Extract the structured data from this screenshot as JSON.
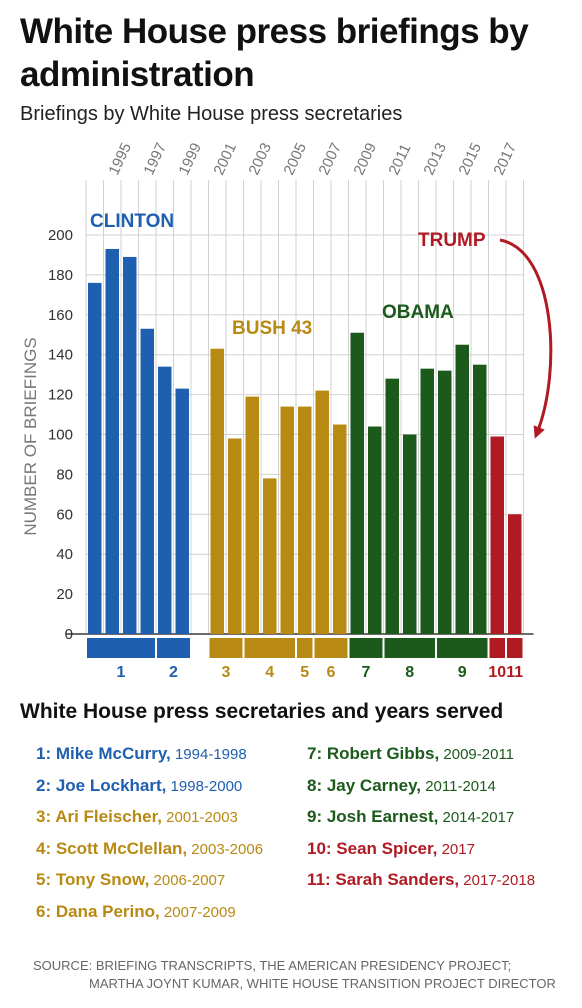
{
  "title": "White House press briefings by administration",
  "subtitle": "Briefings by White House press secretaries",
  "colors": {
    "clinton": "#1f5fb0",
    "bush": "#b88a14",
    "obama": "#1c5a1c",
    "trump": "#b01a22",
    "grid": "#d2d2d2",
    "axis": "#6b6b6b"
  },
  "chart_data": {
    "type": "bar",
    "ylabel": "NUMBER OF BRIEFINGS",
    "ylim": [
      0,
      200
    ],
    "yticks": [
      0,
      20,
      40,
      60,
      80,
      100,
      120,
      140,
      160,
      180,
      200
    ],
    "xticks_top": [
      "1995",
      "1997",
      "1999",
      "2001",
      "2003",
      "2005",
      "2007",
      "2009",
      "2011",
      "2013",
      "2015",
      "2017"
    ],
    "grid": true,
    "bars": [
      {
        "year": 1994,
        "value": 176,
        "admin": "clinton"
      },
      {
        "year": 1995,
        "value": 193,
        "admin": "clinton"
      },
      {
        "year": 1996,
        "value": 189,
        "admin": "clinton"
      },
      {
        "year": 1997,
        "value": 153,
        "admin": "clinton"
      },
      {
        "year": 1998,
        "value": 134,
        "admin": "clinton"
      },
      {
        "year": 1999,
        "value": 123,
        "admin": "clinton"
      },
      {
        "year": 2001,
        "value": 143,
        "admin": "bush"
      },
      {
        "year": 2002,
        "value": 98,
        "admin": "bush"
      },
      {
        "year": 2003,
        "value": 119,
        "admin": "bush"
      },
      {
        "year": 2004,
        "value": 78,
        "admin": "bush"
      },
      {
        "year": 2005,
        "value": 114,
        "admin": "bush"
      },
      {
        "year": 2006,
        "value": 114,
        "admin": "bush"
      },
      {
        "year": 2007,
        "value": 122,
        "admin": "bush"
      },
      {
        "year": 2008,
        "value": 105,
        "admin": "bush"
      },
      {
        "year": 2009,
        "value": 151,
        "admin": "obama"
      },
      {
        "year": 2010,
        "value": 104,
        "admin": "obama"
      },
      {
        "year": 2011,
        "value": 128,
        "admin": "obama"
      },
      {
        "year": 2012,
        "value": 100,
        "admin": "obama"
      },
      {
        "year": 2013,
        "value": 133,
        "admin": "obama"
      },
      {
        "year": 2014,
        "value": 132,
        "admin": "obama"
      },
      {
        "year": 2015,
        "value": 145,
        "admin": "obama"
      },
      {
        "year": 2016,
        "value": 135,
        "admin": "obama"
      },
      {
        "year": 2017,
        "value": 99,
        "admin": "trump"
      },
      {
        "year": 2018,
        "value": 60,
        "admin": "trump"
      }
    ],
    "admin_labels": [
      {
        "text": "CLINTON",
        "admin": "clinton"
      },
      {
        "text": "BUSH 43",
        "admin": "bush"
      },
      {
        "text": "OBAMA",
        "admin": "obama"
      },
      {
        "text": "TRUMP",
        "admin": "trump"
      }
    ],
    "secretary_tenures": [
      {
        "label": "1",
        "start": 1994.0,
        "end": 1998.0,
        "admin": "clinton"
      },
      {
        "label": "2",
        "start": 1998.0,
        "end": 2000.0,
        "admin": "clinton"
      },
      {
        "label": "3",
        "start": 2001.0,
        "end": 2003.0,
        "admin": "bush"
      },
      {
        "label": "4",
        "start": 2003.0,
        "end": 2006.0,
        "admin": "bush"
      },
      {
        "label": "5",
        "start": 2006.0,
        "end": 2007.0,
        "admin": "bush"
      },
      {
        "label": "6",
        "start": 2007.0,
        "end": 2009.0,
        "admin": "bush"
      },
      {
        "label": "7",
        "start": 2009.0,
        "end": 2011.0,
        "admin": "obama"
      },
      {
        "label": "8",
        "start": 2011.0,
        "end": 2014.0,
        "admin": "obama"
      },
      {
        "label": "9",
        "start": 2014.0,
        "end": 2017.0,
        "admin": "obama"
      },
      {
        "label": "10",
        "start": 2017.0,
        "end": 2018.0,
        "admin": "trump"
      },
      {
        "label": "11",
        "start": 2018.0,
        "end": 2019.0,
        "admin": "trump"
      }
    ]
  },
  "legend": {
    "title": "White House press secretaries and years served",
    "left": [
      {
        "name": "1: Mike McCurry,",
        "years": " 1994-1998",
        "admin": "clinton"
      },
      {
        "name": "2: Joe Lockhart,",
        "years": " 1998-2000",
        "admin": "clinton"
      },
      {
        "name": "3: Ari Fleischer,",
        "years": " 2001-2003",
        "admin": "bush"
      },
      {
        "name": "4: Scott McClellan,",
        "years": " 2003-2006",
        "admin": "bush"
      },
      {
        "name": "5: Tony Snow,",
        "years": " 2006-2007",
        "admin": "bush"
      },
      {
        "name": "6: Dana Perino,",
        "years": " 2007-2009",
        "admin": "bush"
      }
    ],
    "right": [
      {
        "name": "7: Robert Gibbs,",
        "years": " 2009-2011",
        "admin": "obama"
      },
      {
        "name": "8: Jay Carney,",
        "years": " 2011-2014",
        "admin": "obama"
      },
      {
        "name": "9: Josh Earnest,",
        "years": " 2014-2017",
        "admin": "obama"
      },
      {
        "name": "10: Sean Spicer,",
        "years": " 2017",
        "admin": "trump"
      },
      {
        "name": "11: Sarah Sanders,",
        "years": " 2017-2018",
        "admin": "trump"
      }
    ]
  },
  "source": {
    "line1": "SOURCE: BRIEFING TRANSCRIPTS, THE AMERICAN PRESIDENCY PROJECT;",
    "line2": "MARTHA JOYNT KUMAR, WHITE HOUSE TRANSITION PROJECT DIRECTOR"
  }
}
